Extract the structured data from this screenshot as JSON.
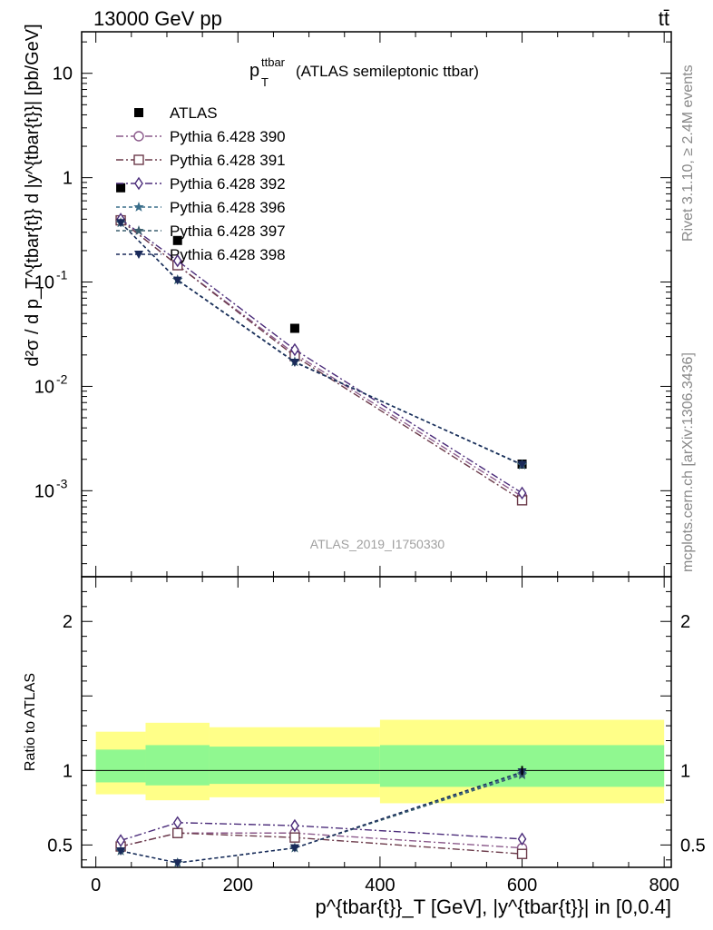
{
  "header": {
    "energy": "13000 GeV pp",
    "process": "tt̄"
  },
  "side_text": {
    "rivet": "Rivet 3.1.10, ≥ 2.4M events",
    "mcplots": "mcplots.cern.ch [arXiv:1306.3436]"
  },
  "watermark": "ATLAS_2019_I1750330",
  "main_title": {
    "base": "p",
    "sup": "ttbar",
    "sub": "T",
    "rest": "(ATLAS semileptonic ttbar)"
  },
  "ylabel_main": "d²σ / d p_T^{tbar{t}} d |y^{tbar{t}}| [pb/GeV]",
  "ylabel_ratio": "Ratio to ATLAS",
  "xlabel": "p^{tbar{t}}_T [GeV], |y^{tbar{t}}| in [0,0.4]",
  "chart_data": [
    {
      "type": "scatter",
      "panel": "main",
      "yscale": "log",
      "xlim": [
        -20,
        810
      ],
      "ylim": [
        0.00015,
        25
      ],
      "x_ticks": [
        0,
        200,
        400,
        600,
        800
      ],
      "y_tick_labels": [
        "10^{-3}",
        "10^{-2}",
        "10^{-1}",
        "1",
        "10"
      ],
      "legend_position": "top-left",
      "series": [
        {
          "name": "ATLAS",
          "color": "#000000",
          "marker": "filled-square",
          "x": [
            35,
            115,
            280,
            600
          ],
          "y": [
            0.8,
            0.25,
            0.036,
            0.0018
          ]
        },
        {
          "name": "Pythia 6.428 390",
          "color": "#8b5a8b",
          "marker": "open-circle",
          "x": [
            35,
            115,
            280,
            600
          ],
          "y": [
            0.39,
            0.145,
            0.0205,
            0.00088
          ]
        },
        {
          "name": "Pythia 6.428 391",
          "color": "#6b3a4a",
          "marker": "open-square",
          "x": [
            35,
            115,
            280,
            600
          ],
          "y": [
            0.39,
            0.145,
            0.0195,
            0.00081
          ]
        },
        {
          "name": "Pythia 6.428 392",
          "color": "#4b2c7a",
          "marker": "open-diamond",
          "x": [
            35,
            115,
            280,
            600
          ],
          "y": [
            0.4,
            0.16,
            0.0225,
            0.00095
          ]
        },
        {
          "name": "Pythia 6.428 396",
          "color": "#3a6e8a",
          "marker": "star",
          "x": [
            35,
            115,
            280,
            600
          ],
          "y": [
            0.37,
            0.105,
            0.0172,
            0.00178
          ]
        },
        {
          "name": "Pythia 6.428 397",
          "color": "#3a5e6e",
          "marker": "star",
          "x": [
            35,
            115,
            280,
            600
          ],
          "y": [
            0.37,
            0.105,
            0.0172,
            0.00176
          ]
        },
        {
          "name": "Pythia 6.428 398",
          "color": "#1a2a5a",
          "marker": "filled-triangle-down",
          "x": [
            35,
            115,
            280,
            600
          ],
          "y": [
            0.37,
            0.104,
            0.017,
            0.00178
          ]
        }
      ]
    },
    {
      "type": "scatter",
      "panel": "ratio",
      "xlim": [
        -20,
        810
      ],
      "ylim": [
        0.35,
        2.3
      ],
      "y_ticks": [
        0.5,
        1,
        2
      ],
      "x_ticks": [
        0,
        200,
        400,
        600,
        800
      ],
      "bands": [
        {
          "x_edges": [
            0,
            70,
            160,
            400,
            800
          ],
          "yellow_low": [
            0.84,
            0.8,
            0.82,
            0.78
          ],
          "yellow_high": [
            1.26,
            1.32,
            1.29,
            1.34
          ],
          "green_low": [
            0.92,
            0.9,
            0.91,
            0.89
          ],
          "green_high": [
            1.14,
            1.17,
            1.16,
            1.17
          ]
        }
      ],
      "series": [
        {
          "name": "Pythia 6.428 390",
          "color": "#8b5a8b",
          "marker": "open-circle",
          "x": [
            35,
            115,
            280,
            600
          ],
          "y": [
            0.49,
            0.58,
            0.58,
            0.48
          ]
        },
        {
          "name": "Pythia 6.428 391",
          "color": "#6b3a4a",
          "marker": "open-square",
          "x": [
            35,
            115,
            280,
            600
          ],
          "y": [
            0.49,
            0.58,
            0.55,
            0.44
          ]
        },
        {
          "name": "Pythia 6.428 392",
          "color": "#4b2c7a",
          "marker": "open-diamond",
          "x": [
            35,
            115,
            280,
            600
          ],
          "y": [
            0.53,
            0.65,
            0.63,
            0.54
          ]
        },
        {
          "name": "Pythia 6.428 396",
          "color": "#3a6e8a",
          "marker": "star",
          "x": [
            35,
            115,
            280,
            600
          ],
          "y": [
            0.46,
            0.38,
            0.48,
            0.98
          ]
        },
        {
          "name": "Pythia 6.428 397",
          "color": "#3a5e6e",
          "marker": "star",
          "x": [
            35,
            115,
            280,
            600
          ],
          "y": [
            0.46,
            0.38,
            0.48,
            0.97
          ]
        },
        {
          "name": "Pythia 6.428 398",
          "color": "#1a2a5a",
          "marker": "filled-triangle-down",
          "x": [
            35,
            115,
            280,
            600
          ],
          "y": [
            0.46,
            0.38,
            0.48,
            0.99
          ]
        }
      ]
    }
  ]
}
